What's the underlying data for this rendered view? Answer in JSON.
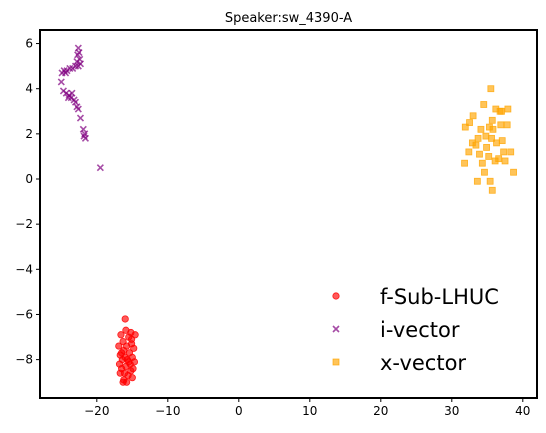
{
  "chart_data": {
    "type": "scatter",
    "title": "Speaker:sw_4390-A",
    "xlabel": "",
    "ylabel": "",
    "xlim": [
      -28,
      42
    ],
    "ylim": [
      -9.7,
      6.6
    ],
    "xticks": [
      -20,
      -10,
      0,
      10,
      20,
      30,
      40
    ],
    "yticks": [
      -8,
      -6,
      -4,
      -2,
      0,
      2,
      4,
      6
    ],
    "grid": false,
    "legend_position": "lower-right",
    "series": [
      {
        "name": "f-Sub-LHUC",
        "marker": "circle",
        "color": "#ff0000",
        "points": [
          [
            -16.0,
            -6.2
          ],
          [
            -15.9,
            -6.7
          ],
          [
            -15.2,
            -6.8
          ],
          [
            -14.6,
            -6.9
          ],
          [
            -16.6,
            -6.9
          ],
          [
            -15.5,
            -7.0
          ],
          [
            -16.3,
            -7.2
          ],
          [
            -15.1,
            -7.3
          ],
          [
            -15.8,
            -7.4
          ],
          [
            -16.9,
            -7.4
          ],
          [
            -14.8,
            -7.5
          ],
          [
            -16.2,
            -7.6
          ],
          [
            -15.4,
            -7.7
          ],
          [
            -16.7,
            -7.8
          ],
          [
            -15.0,
            -7.9
          ],
          [
            -15.7,
            -8.0
          ],
          [
            -16.4,
            -8.0
          ],
          [
            -14.7,
            -8.1
          ],
          [
            -15.3,
            -8.2
          ],
          [
            -16.8,
            -8.2
          ],
          [
            -15.9,
            -8.3
          ],
          [
            -16.5,
            -8.4
          ],
          [
            -15.2,
            -8.5
          ],
          [
            -14.9,
            -8.4
          ],
          [
            -16.1,
            -8.6
          ],
          [
            -15.6,
            -8.7
          ],
          [
            -16.7,
            -8.6
          ],
          [
            -15.0,
            -8.8
          ],
          [
            -16.2,
            -8.9
          ],
          [
            -15.8,
            -9.0
          ],
          [
            -16.3,
            -9.0
          ],
          [
            -15.5,
            -8.1
          ],
          [
            -16.0,
            -7.9
          ],
          [
            -15.1,
            -7.1
          ],
          [
            -16.5,
            -7.7
          ]
        ]
      },
      {
        "name": "i-vector",
        "marker": "x",
        "color": "#800080",
        "points": [
          [
            -22.6,
            5.8
          ],
          [
            -22.5,
            5.6
          ],
          [
            -22.7,
            5.5
          ],
          [
            -22.4,
            5.3
          ],
          [
            -22.8,
            5.2
          ],
          [
            -22.3,
            5.1
          ],
          [
            -23.0,
            5.0
          ],
          [
            -22.6,
            5.0
          ],
          [
            -23.4,
            4.9
          ],
          [
            -23.8,
            4.9
          ],
          [
            -24.2,
            4.8
          ],
          [
            -24.6,
            4.8
          ],
          [
            -24.9,
            4.7
          ],
          [
            -24.4,
            4.7
          ],
          [
            -25.0,
            4.3
          ],
          [
            -24.7,
            3.9
          ],
          [
            -24.3,
            3.8
          ],
          [
            -23.9,
            3.7
          ],
          [
            -23.5,
            3.8
          ],
          [
            -24.0,
            3.6
          ],
          [
            -23.6,
            3.6
          ],
          [
            -23.2,
            3.5
          ],
          [
            -23.0,
            3.4
          ],
          [
            -22.8,
            3.2
          ],
          [
            -22.6,
            3.1
          ],
          [
            -22.3,
            2.7
          ],
          [
            -21.9,
            2.2
          ],
          [
            -21.7,
            2.0
          ],
          [
            -21.8,
            1.9
          ],
          [
            -21.6,
            1.8
          ],
          [
            -19.5,
            0.5
          ]
        ]
      },
      {
        "name": "x-vector",
        "marker": "square",
        "color": "#ffa500",
        "points": [
          [
            35.5,
            4.0
          ],
          [
            33.0,
            2.8
          ],
          [
            34.5,
            3.3
          ],
          [
            36.2,
            3.1
          ],
          [
            37.0,
            3.0
          ],
          [
            37.9,
            3.1
          ],
          [
            32.5,
            2.5
          ],
          [
            35.7,
            2.6
          ],
          [
            36.9,
            2.4
          ],
          [
            31.9,
            2.3
          ],
          [
            34.1,
            2.2
          ],
          [
            35.3,
            2.3
          ],
          [
            35.8,
            2.2
          ],
          [
            37.8,
            2.4
          ],
          [
            33.7,
            1.8
          ],
          [
            34.8,
            1.9
          ],
          [
            35.6,
            1.8
          ],
          [
            36.3,
            1.6
          ],
          [
            37.1,
            1.7
          ],
          [
            33.4,
            1.5
          ],
          [
            34.9,
            1.4
          ],
          [
            38.3,
            1.2
          ],
          [
            32.4,
            1.2
          ],
          [
            33.9,
            1.1
          ],
          [
            35.2,
            1.0
          ],
          [
            36.6,
            0.9
          ],
          [
            36.1,
            0.8
          ],
          [
            34.3,
            0.7
          ],
          [
            37.5,
            0.8
          ],
          [
            31.8,
            0.7
          ],
          [
            38.7,
            0.3
          ],
          [
            33.6,
            -0.1
          ],
          [
            35.4,
            -0.1
          ],
          [
            34.6,
            0.3
          ],
          [
            35.7,
            -0.5
          ],
          [
            37.3,
            1.2
          ],
          [
            36.8,
            3.0
          ],
          [
            32.9,
            1.6
          ]
        ]
      }
    ]
  }
}
